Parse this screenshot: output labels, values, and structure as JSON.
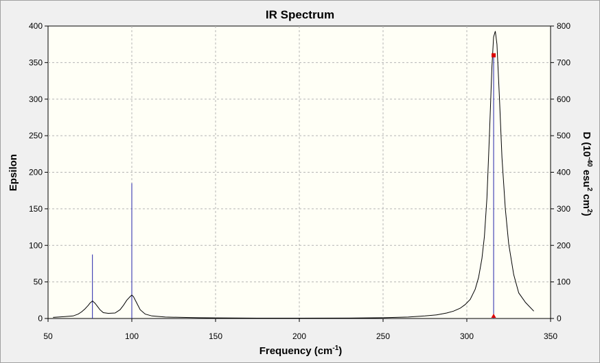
{
  "chart_data": {
    "type": "line",
    "title": "IR Spectrum",
    "xlabel": "Frequency (cm",
    "xlabel_sup": "-1",
    "xlabel_close": ")",
    "ylabel": "Epsilon",
    "y2label_parts": [
      "D (10",
      "-40",
      " esu",
      "2",
      " cm",
      "2",
      ")"
    ],
    "xlim": [
      50,
      350
    ],
    "ylim": [
      0,
      400
    ],
    "y2lim": [
      0,
      800
    ],
    "xticks": [
      "50",
      "100",
      "150",
      "200",
      "250",
      "300",
      "350"
    ],
    "yticks": [
      "0",
      "50",
      "100",
      "150",
      "200",
      "250",
      "300",
      "350",
      "400"
    ],
    "y2ticks": [
      "0",
      "100",
      "200",
      "300",
      "400",
      "500",
      "600",
      "700",
      "800"
    ],
    "grid": true,
    "series": [
      {
        "kind": "spectrum",
        "axis": "left",
        "color": "#000000",
        "x": [
          53,
          60,
          65,
          68,
          70,
          72,
          74,
          75,
          76.5,
          78,
          79,
          81,
          83,
          86,
          90,
          93,
          95,
          97,
          99,
          100,
          101,
          103,
          105,
          108,
          112,
          120,
          130,
          140,
          150,
          175,
          200,
          230,
          250,
          265,
          275,
          282,
          288,
          292,
          296,
          299,
          302,
          305,
          307,
          309,
          310.5,
          312,
          313.5,
          315,
          316,
          317,
          318,
          319.5,
          321,
          323,
          325,
          328,
          331,
          335,
          340
        ],
        "y": [
          1.5,
          2.5,
          3.5,
          6,
          9,
          13,
          18,
          21,
          24,
          21,
          18,
          12,
          8,
          7,
          7.5,
          12,
          18,
          25,
          30,
          32,
          30,
          21,
          12,
          6,
          3.5,
          2,
          1.5,
          1,
          0.8,
          0.5,
          0.5,
          0.6,
          1,
          2,
          3.5,
          5,
          7.5,
          10,
          14,
          19,
          26,
          40,
          56,
          82,
          112,
          165,
          250,
          345,
          385,
          393,
          375,
          300,
          220,
          150,
          102,
          60,
          35,
          22,
          10
        ]
      },
      {
        "kind": "sticks",
        "axis": "right",
        "color": "#2222aa",
        "x": [
          76.5,
          100,
          316
        ],
        "y": [
          175,
          370,
          720
        ]
      }
    ],
    "markers": [
      {
        "x": 316,
        "y2": 720,
        "color": "#dd0000",
        "shape": "square"
      },
      {
        "x": 316,
        "y2": 0,
        "color": "#dd0000",
        "shape": "triangle"
      }
    ]
  }
}
